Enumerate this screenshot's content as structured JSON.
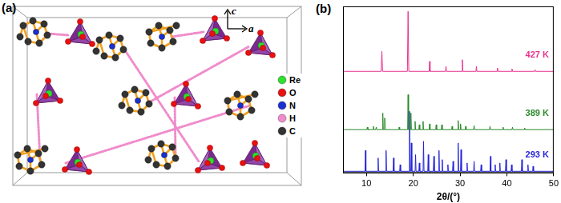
{
  "panel_a": {
    "label": "(a)",
    "axes": [
      "c",
      "a"
    ],
    "legend": [
      {
        "element": "Re",
        "color": "#2ee02e"
      },
      {
        "element": "O",
        "color": "#e81010"
      },
      {
        "element": "N",
        "color": "#1a2fd0"
      },
      {
        "element": "H",
        "color": "#f08ccc"
      },
      {
        "element": "C",
        "color": "#333333"
      }
    ]
  },
  "chart_data": {
    "type": "line",
    "panel_label": "(b)",
    "x_label": "2θ/(°)",
    "xlim": [
      5,
      50
    ],
    "xticks": [
      10,
      20,
      30,
      40,
      50
    ],
    "ylim": [
      0,
      100
    ],
    "tick_labels": "x",
    "grid": false,
    "series": [
      {
        "name": "427 K",
        "color": "#e8338c",
        "x": [
          5,
          13.15,
          13.3,
          13.45,
          18.75,
          18.9,
          19.05,
          23.4,
          23.5,
          23.6,
          26.9,
          27,
          27.1,
          30.4,
          30.5,
          30.6,
          33.4,
          33.5,
          33.6,
          37.9,
          38,
          38.1,
          41,
          41.1,
          41.2,
          45.9,
          46,
          46.1,
          50
        ],
        "values": [
          61,
          61,
          73,
          61,
          61,
          97,
          61,
          61,
          67,
          61,
          61,
          64,
          61,
          61,
          68,
          61,
          61,
          64,
          61,
          61,
          63,
          61,
          61,
          62.5,
          61,
          61,
          62,
          61,
          61
        ]
      },
      {
        "name": "389 K",
        "color": "#2a8a2a",
        "x": [
          5,
          10.1,
          10.2,
          10.3,
          11.4,
          11.5,
          11.6,
          12.0,
          12.1,
          12.2,
          13.4,
          13.5,
          13.6,
          13.8,
          13.9,
          14.0,
          16.9,
          17,
          17.1,
          18.8,
          18.9,
          19.0,
          19.4,
          19.5,
          19.6,
          20.3,
          20.4,
          20.5,
          21.2,
          21.3,
          21.4,
          22.0,
          22.1,
          22.2,
          23.4,
          23.5,
          23.6,
          24.8,
          24.9,
          25.0,
          26.0,
          26.1,
          26.2,
          28.2,
          28.3,
          28.4,
          29.5,
          29.6,
          29.7,
          30.0,
          30.1,
          30.2,
          31.1,
          31.2,
          31.3,
          32.9,
          33,
          33.1,
          36.3,
          36.4,
          36.5,
          39.1,
          39.2,
          39.3,
          41.1,
          41.2,
          41.3,
          43.7,
          43.8,
          43.9,
          50
        ],
        "values": [
          26,
          26,
          27.5,
          26,
          26,
          28,
          26,
          26,
          27.5,
          26,
          26,
          36,
          26,
          26,
          33,
          26,
          26,
          27.5,
          26,
          26,
          47,
          26,
          26,
          36,
          26,
          26,
          31,
          26,
          26,
          29,
          26,
          26,
          31,
          26,
          26,
          29.5,
          26,
          26,
          29,
          26,
          26,
          29,
          26,
          26,
          28,
          26,
          26,
          31.5,
          26,
          26,
          29.5,
          26,
          26,
          28,
          26,
          26,
          28.5,
          26,
          26,
          28,
          26,
          26,
          27.5,
          26,
          26,
          27.5,
          26,
          26,
          27,
          26,
          26
        ]
      },
      {
        "name": "293 K",
        "color": "#2424d8",
        "x": [
          5,
          9.7,
          9.8,
          9.9,
          12.4,
          12.5,
          12.6,
          14.1,
          14.2,
          14.3,
          15.7,
          15.8,
          15.9,
          17.1,
          17.2,
          17.3,
          19.1,
          19.2,
          19.3,
          19.5,
          19.6,
          19.7,
          20.4,
          20.5,
          20.6,
          21.2,
          21.3,
          21.4,
          22.1,
          22.2,
          22.3,
          23.1,
          23.2,
          23.3,
          24.3,
          24.4,
          24.5,
          25.4,
          25.5,
          25.6,
          26.1,
          26.2,
          26.3,
          27.3,
          27.4,
          27.5,
          28.4,
          28.5,
          28.6,
          29.5,
          29.6,
          29.7,
          30.1,
          30.2,
          30.3,
          31.4,
          31.5,
          31.6,
          32.9,
          33,
          33.1,
          34.4,
          34.5,
          34.6,
          36.4,
          36.5,
          36.6,
          37.4,
          37.5,
          37.6,
          38.4,
          38.5,
          38.6,
          39.7,
          39.8,
          39.9,
          40.9,
          41,
          41.1,
          43.1,
          43.2,
          43.3,
          44.4,
          44.5,
          44.6,
          45.5,
          45.6,
          45.7,
          50
        ],
        "values": [
          1,
          1,
          13.5,
          1,
          1,
          9,
          1,
          1,
          13.5,
          1,
          1,
          9,
          1,
          1,
          5,
          1,
          1,
          37,
          1,
          1,
          18,
          1,
          1,
          11,
          1,
          1,
          6,
          1,
          1,
          19,
          1,
          1,
          11,
          1,
          1,
          10,
          1,
          1,
          13.5,
          1,
          1,
          8,
          1,
          1,
          5,
          1,
          1,
          7,
          1,
          1,
          18,
          1,
          1,
          14,
          1,
          1,
          6,
          1,
          1,
          7,
          1,
          1,
          5,
          1,
          1,
          10,
          1,
          1,
          5,
          1,
          1,
          6,
          1,
          1,
          8,
          1,
          1,
          5,
          1,
          1,
          8,
          1,
          1,
          5,
          1,
          1,
          4,
          1,
          1
        ]
      }
    ]
  }
}
